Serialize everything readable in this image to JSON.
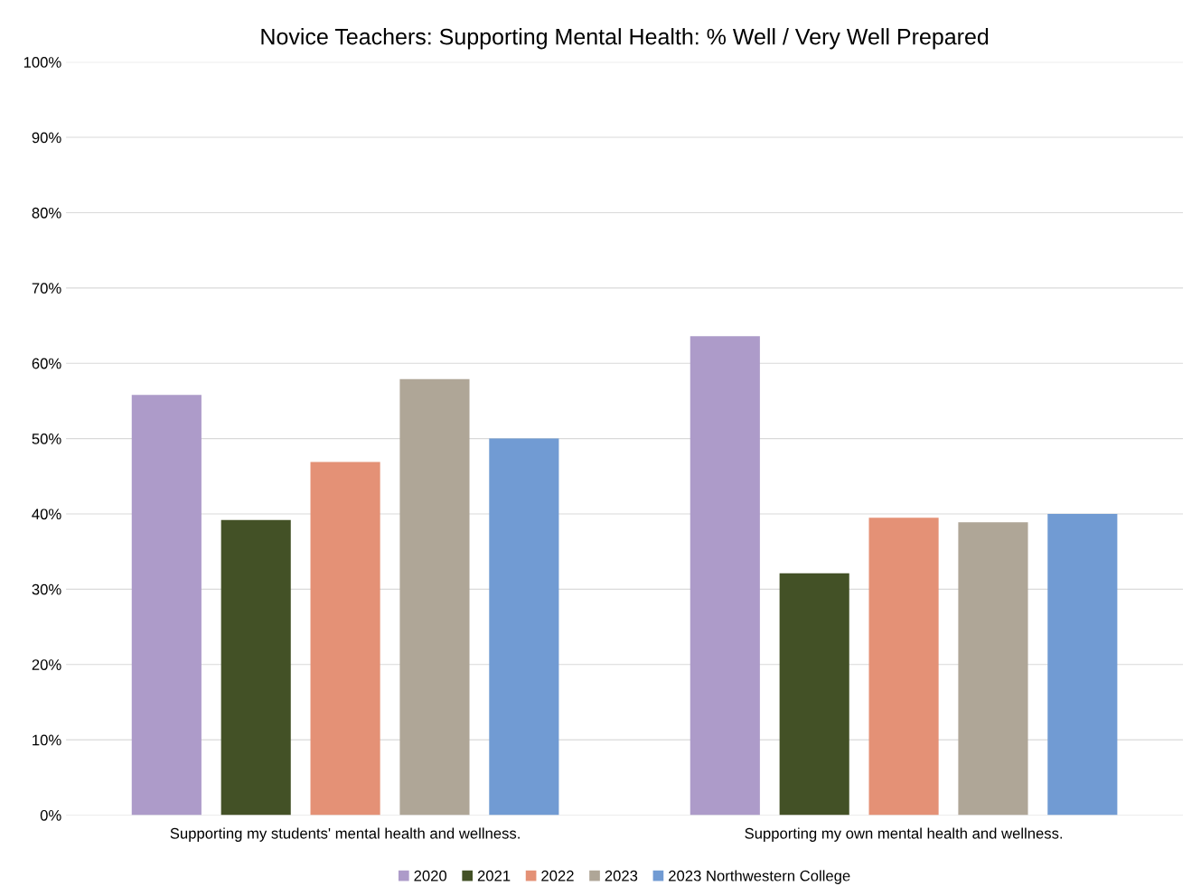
{
  "chart_data": {
    "type": "bar",
    "title": "Novice Teachers: Supporting Mental Health: % Well / Very Well Prepared",
    "categories": [
      "Supporting my students' mental health and wellness.",
      "Supporting my own mental health and wellness."
    ],
    "series": [
      {
        "name": "2020",
        "color": "#ad9bc9",
        "values": [
          55.8,
          63.6
        ]
      },
      {
        "name": "2021",
        "color": "#435126",
        "values": [
          39.2,
          32.1
        ]
      },
      {
        "name": "2022",
        "color": "#e49176",
        "values": [
          46.9,
          39.5
        ]
      },
      {
        "name": "2023",
        "color": "#afa697",
        "values": [
          57.9,
          38.9
        ]
      },
      {
        "name": "2023 Northwestern College",
        "color": "#719bd3",
        "values": [
          50,
          40
        ]
      }
    ],
    "ylim": [
      0,
      100
    ],
    "yticks": [
      {
        "value": 0,
        "label": "0%"
      },
      {
        "value": 10,
        "label": "10%"
      },
      {
        "value": 20,
        "label": "20%"
      },
      {
        "value": 30,
        "label": "30%"
      },
      {
        "value": 40,
        "label": "40%"
      },
      {
        "value": 50,
        "label": "50%"
      },
      {
        "value": 60,
        "label": "60%"
      },
      {
        "value": 70,
        "label": "70%"
      },
      {
        "value": 80,
        "label": "80%"
      },
      {
        "value": 90,
        "label": "90%"
      },
      {
        "value": 100,
        "label": "100%"
      }
    ],
    "grid": "y",
    "legend": "bottom"
  }
}
